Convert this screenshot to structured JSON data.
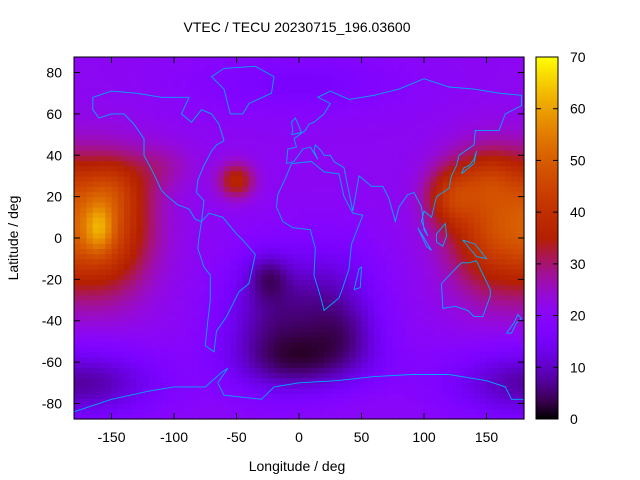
{
  "chart_data": {
    "type": "heatmap",
    "title": "VTEC / TECU 20230715_196.03600",
    "xlabel": "Longitude / deg",
    "ylabel": "Latitude / deg",
    "xlim": [
      -180,
      180
    ],
    "ylim": [
      -87.5,
      87.5
    ],
    "xticks": [
      "-150",
      "-100",
      "-50",
      "0",
      "50",
      "100",
      "150"
    ],
    "xtick_values": [
      -150,
      -100,
      -50,
      0,
      50,
      100,
      150
    ],
    "yticks": [
      "80",
      "60",
      "40",
      "20",
      "0",
      "-20",
      "-40",
      "-60",
      "-80"
    ],
    "ytick_values": [
      80,
      60,
      40,
      20,
      0,
      -20,
      -40,
      -60,
      -80
    ],
    "colorbar": {
      "range": [
        0,
        70
      ],
      "ticks": [
        "70",
        "60",
        "50",
        "40",
        "30",
        "20",
        "10",
        "0"
      ],
      "tick_values": [
        70,
        60,
        50,
        40,
        30,
        20,
        10,
        0
      ],
      "palette": "gnuplot-pm3d-black-purple-red-yellow"
    },
    "grid_resolution": {
      "dlon": 5,
      "dlat": 2.5
    },
    "field_features": [
      {
        "lon": -160,
        "lat": 3,
        "value": 70
      },
      {
        "lon": -150,
        "lat": 18,
        "value": 52
      },
      {
        "lon": 152,
        "lat": 5,
        "value": 53
      },
      {
        "lon": 118,
        "lat": 22,
        "value": 45
      },
      {
        "lon": -50,
        "lat": 28,
        "value": 40
      },
      {
        "lon": -25,
        "lat": -18,
        "value": 5
      },
      {
        "lon": 10,
        "lat": -60,
        "value": 3
      },
      {
        "lon": -25,
        "lat": -42,
        "value": 4
      },
      {
        "lon": 40,
        "lat": -45,
        "value": 5
      },
      {
        "lon": 135,
        "lat": -48,
        "value": 10
      }
    ],
    "grid": false,
    "coastlines": true,
    "coastline_color": "#00aaff"
  }
}
